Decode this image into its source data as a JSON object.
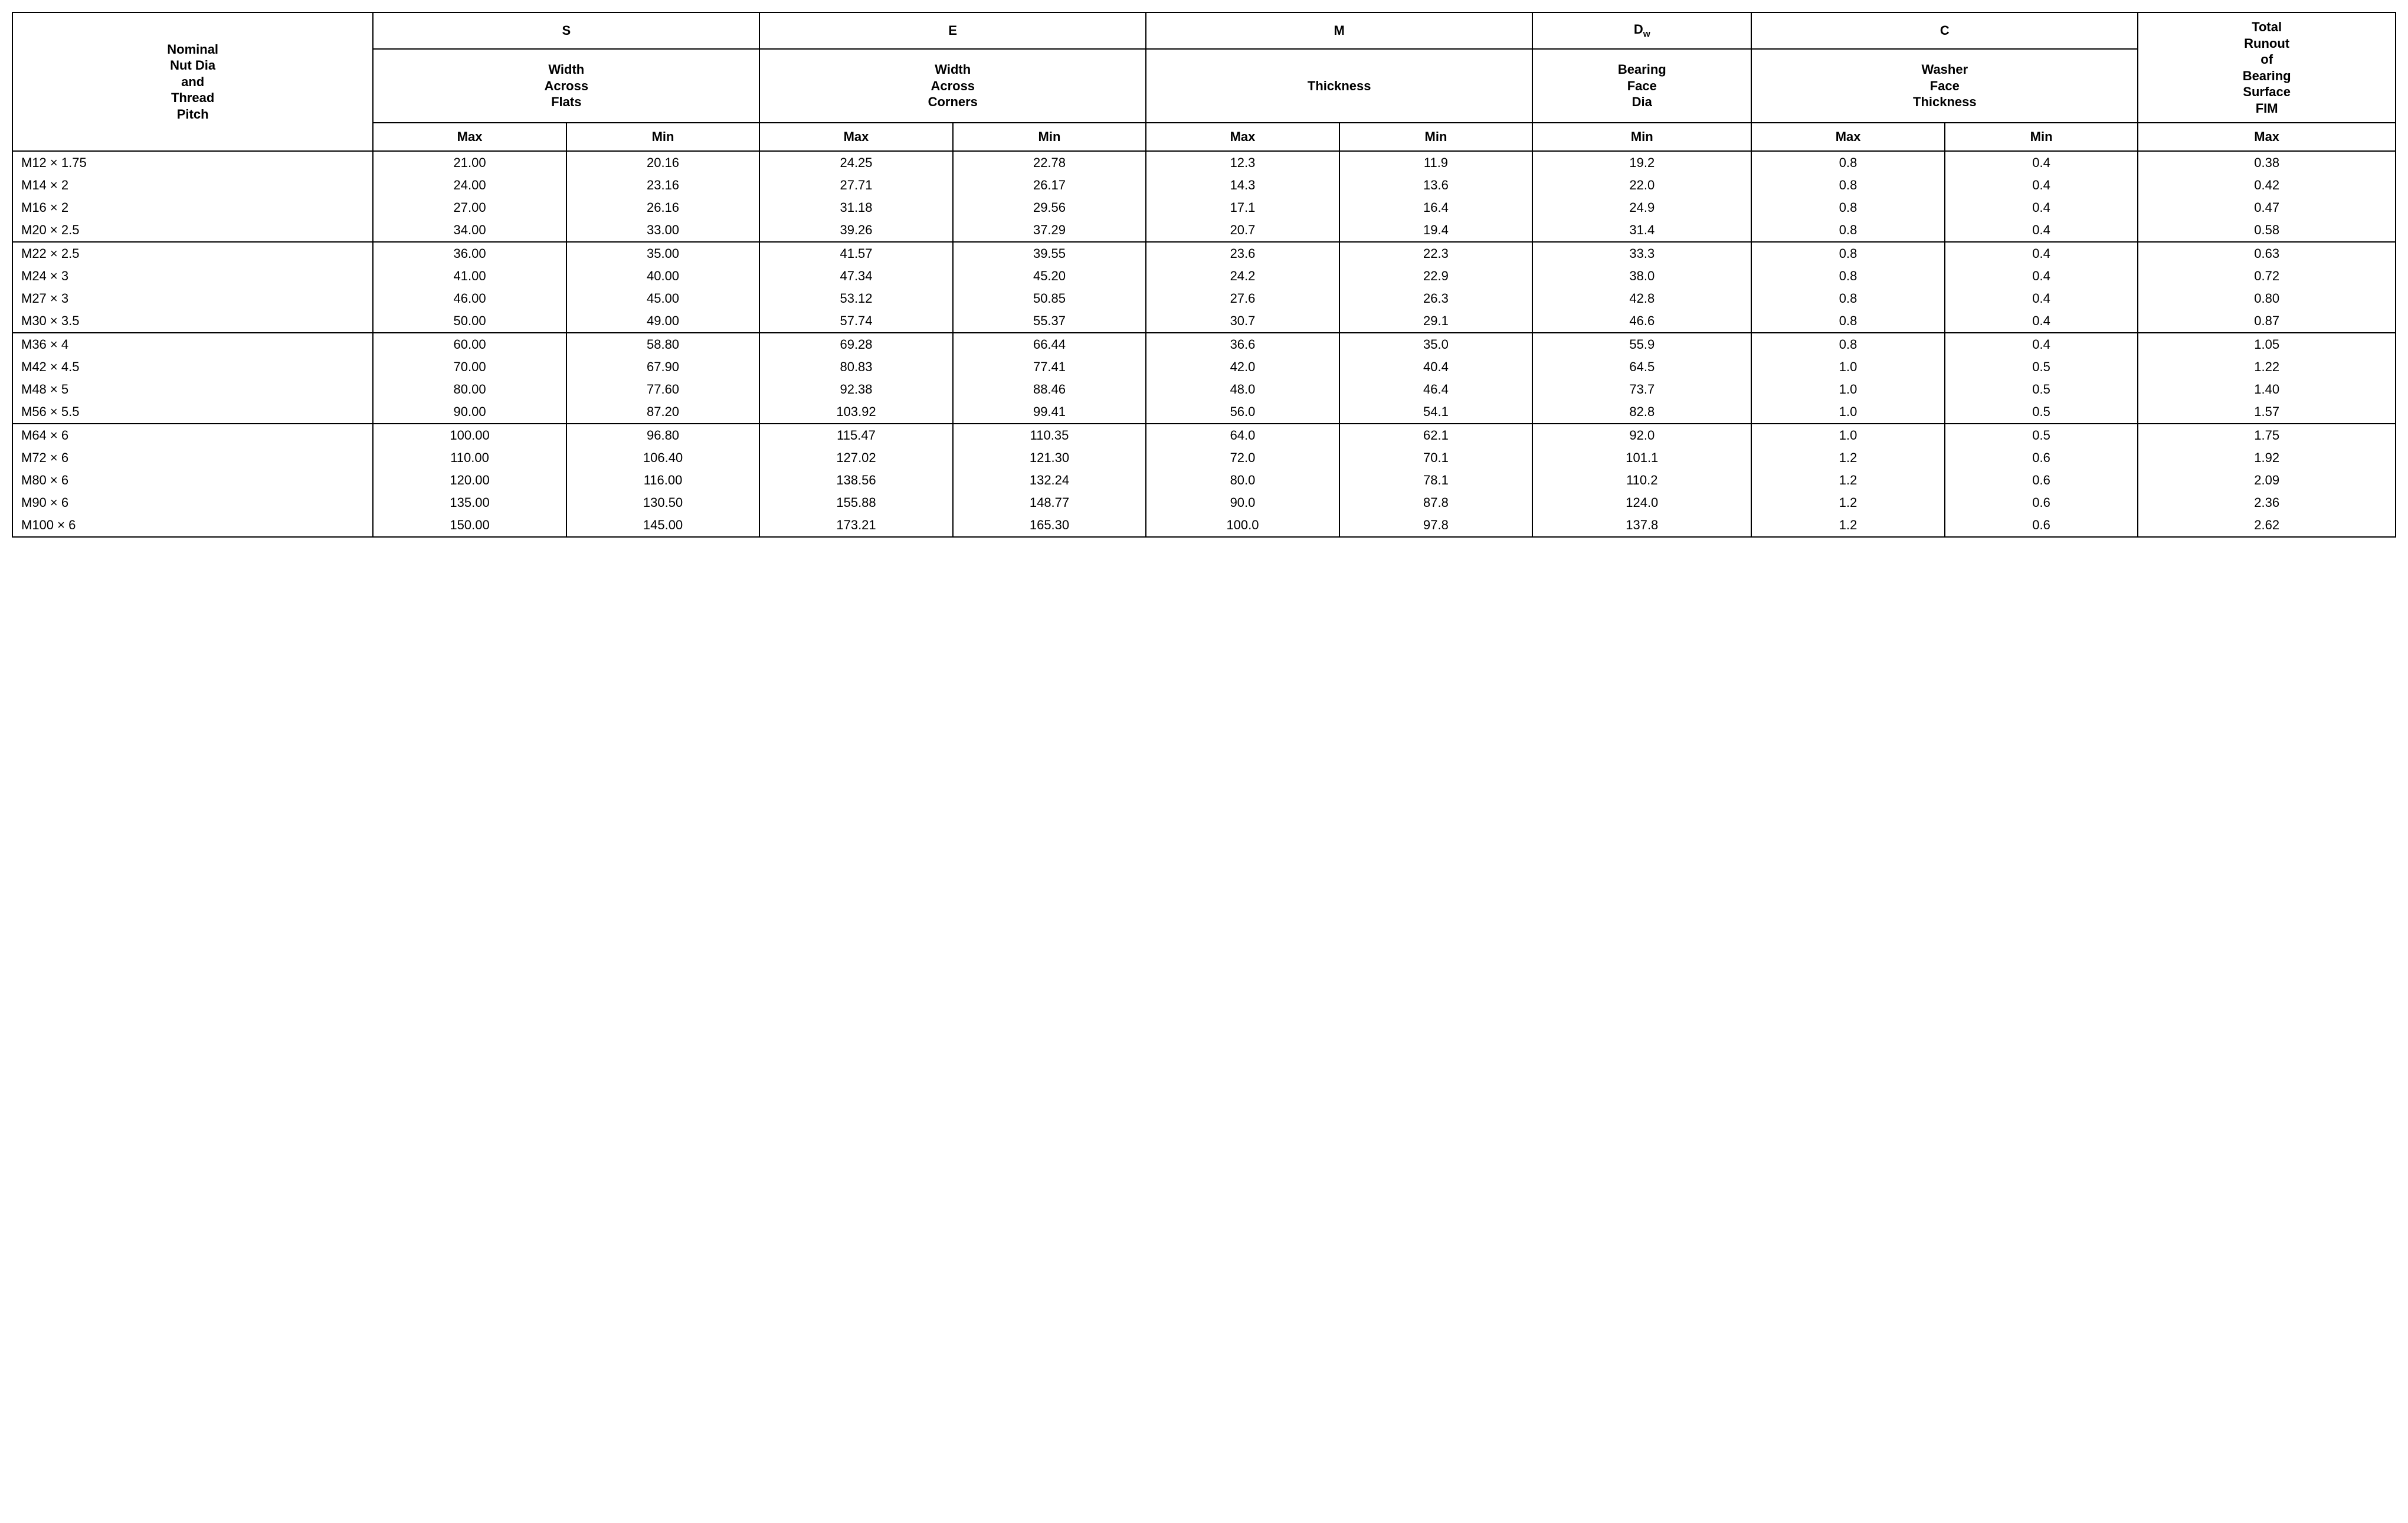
{
  "header": {
    "nominal": "Nominal\nNut Dia\nand\nThread\nPitch",
    "s_sym": "S",
    "s_label": "Width\nAcross\nFlats",
    "e_sym": "E",
    "e_label": "Width\nAcross\nCorners",
    "m_sym": "M",
    "m_label": "Thickness",
    "dw_sym_html": "D<sub>w</sub>",
    "dw_label": "Bearing\nFace\nDia",
    "c_sym": "C",
    "c_label": "Washer\nFace\nThickness",
    "runout": "Total\nRunout\nof\nBearing\nSurface\nFIM",
    "max": "Max",
    "min": "Min"
  },
  "groups": [
    [
      {
        "nom": "M12 × 1.75",
        "s_max": "21.00",
        "s_min": "20.16",
        "e_max": "24.25",
        "e_min": "22.78",
        "m_max": "12.3",
        "m_min": "11.9",
        "dw_min": "19.2",
        "c_max": "0.8",
        "c_min": "0.4",
        "run_max": "0.38"
      },
      {
        "nom": "M14 × 2",
        "s_max": "24.00",
        "s_min": "23.16",
        "e_max": "27.71",
        "e_min": "26.17",
        "m_max": "14.3",
        "m_min": "13.6",
        "dw_min": "22.0",
        "c_max": "0.8",
        "c_min": "0.4",
        "run_max": "0.42"
      },
      {
        "nom": "M16 × 2",
        "s_max": "27.00",
        "s_min": "26.16",
        "e_max": "31.18",
        "e_min": "29.56",
        "m_max": "17.1",
        "m_min": "16.4",
        "dw_min": "24.9",
        "c_max": "0.8",
        "c_min": "0.4",
        "run_max": "0.47"
      },
      {
        "nom": "M20 × 2.5",
        "s_max": "34.00",
        "s_min": "33.00",
        "e_max": "39.26",
        "e_min": "37.29",
        "m_max": "20.7",
        "m_min": "19.4",
        "dw_min": "31.4",
        "c_max": "0.8",
        "c_min": "0.4",
        "run_max": "0.58"
      }
    ],
    [
      {
        "nom": "M22 × 2.5",
        "s_max": "36.00",
        "s_min": "35.00",
        "e_max": "41.57",
        "e_min": "39.55",
        "m_max": "23.6",
        "m_min": "22.3",
        "dw_min": "33.3",
        "c_max": "0.8",
        "c_min": "0.4",
        "run_max": "0.63"
      },
      {
        "nom": "M24 × 3",
        "s_max": "41.00",
        "s_min": "40.00",
        "e_max": "47.34",
        "e_min": "45.20",
        "m_max": "24.2",
        "m_min": "22.9",
        "dw_min": "38.0",
        "c_max": "0.8",
        "c_min": "0.4",
        "run_max": "0.72"
      },
      {
        "nom": "M27 × 3",
        "s_max": "46.00",
        "s_min": "45.00",
        "e_max": "53.12",
        "e_min": "50.85",
        "m_max": "27.6",
        "m_min": "26.3",
        "dw_min": "42.8",
        "c_max": "0.8",
        "c_min": "0.4",
        "run_max": "0.80"
      },
      {
        "nom": "M30 × 3.5",
        "s_max": "50.00",
        "s_min": "49.00",
        "e_max": "57.74",
        "e_min": "55.37",
        "m_max": "30.7",
        "m_min": "29.1",
        "dw_min": "46.6",
        "c_max": "0.8",
        "c_min": "0.4",
        "run_max": "0.87"
      }
    ],
    [
      {
        "nom": "M36 × 4",
        "s_max": "60.00",
        "s_min": "58.80",
        "e_max": "69.28",
        "e_min": "66.44",
        "m_max": "36.6",
        "m_min": "35.0",
        "dw_min": "55.9",
        "c_max": "0.8",
        "c_min": "0.4",
        "run_max": "1.05"
      },
      {
        "nom": "M42 × 4.5",
        "s_max": "70.00",
        "s_min": "67.90",
        "e_max": "80.83",
        "e_min": "77.41",
        "m_max": "42.0",
        "m_min": "40.4",
        "dw_min": "64.5",
        "c_max": "1.0",
        "c_min": "0.5",
        "run_max": "1.22"
      },
      {
        "nom": "M48 × 5",
        "s_max": "80.00",
        "s_min": "77.60",
        "e_max": "92.38",
        "e_min": "88.46",
        "m_max": "48.0",
        "m_min": "46.4",
        "dw_min": "73.7",
        "c_max": "1.0",
        "c_min": "0.5",
        "run_max": "1.40"
      },
      {
        "nom": "M56 × 5.5",
        "s_max": "90.00",
        "s_min": "87.20",
        "e_max": "103.92",
        "e_min": "99.41",
        "m_max": "56.0",
        "m_min": "54.1",
        "dw_min": "82.8",
        "c_max": "1.0",
        "c_min": "0.5",
        "run_max": "1.57"
      }
    ],
    [
      {
        "nom": "M64 × 6",
        "s_max": "100.00",
        "s_min": "96.80",
        "e_max": "115.47",
        "e_min": "110.35",
        "m_max": "64.0",
        "m_min": "62.1",
        "dw_min": "92.0",
        "c_max": "1.0",
        "c_min": "0.5",
        "run_max": "1.75"
      },
      {
        "nom": "M72 × 6",
        "s_max": "110.00",
        "s_min": "106.40",
        "e_max": "127.02",
        "e_min": "121.30",
        "m_max": "72.0",
        "m_min": "70.1",
        "dw_min": "101.1",
        "c_max": "1.2",
        "c_min": "0.6",
        "run_max": "1.92"
      },
      {
        "nom": "M80 × 6",
        "s_max": "120.00",
        "s_min": "116.00",
        "e_max": "138.56",
        "e_min": "132.24",
        "m_max": "80.0",
        "m_min": "78.1",
        "dw_min": "110.2",
        "c_max": "1.2",
        "c_min": "0.6",
        "run_max": "2.09"
      },
      {
        "nom": "M90 × 6",
        "s_max": "135.00",
        "s_min": "130.50",
        "e_max": "155.88",
        "e_min": "148.77",
        "m_max": "90.0",
        "m_min": "87.8",
        "dw_min": "124.0",
        "c_max": "1.2",
        "c_min": "0.6",
        "run_max": "2.36"
      },
      {
        "nom": "M100 × 6",
        "s_max": "150.00",
        "s_min": "145.00",
        "e_max": "173.21",
        "e_min": "165.30",
        "m_max": "100.0",
        "m_min": "97.8",
        "dw_min": "137.8",
        "c_max": "1.2",
        "c_min": "0.6",
        "run_max": "2.62"
      }
    ]
  ]
}
